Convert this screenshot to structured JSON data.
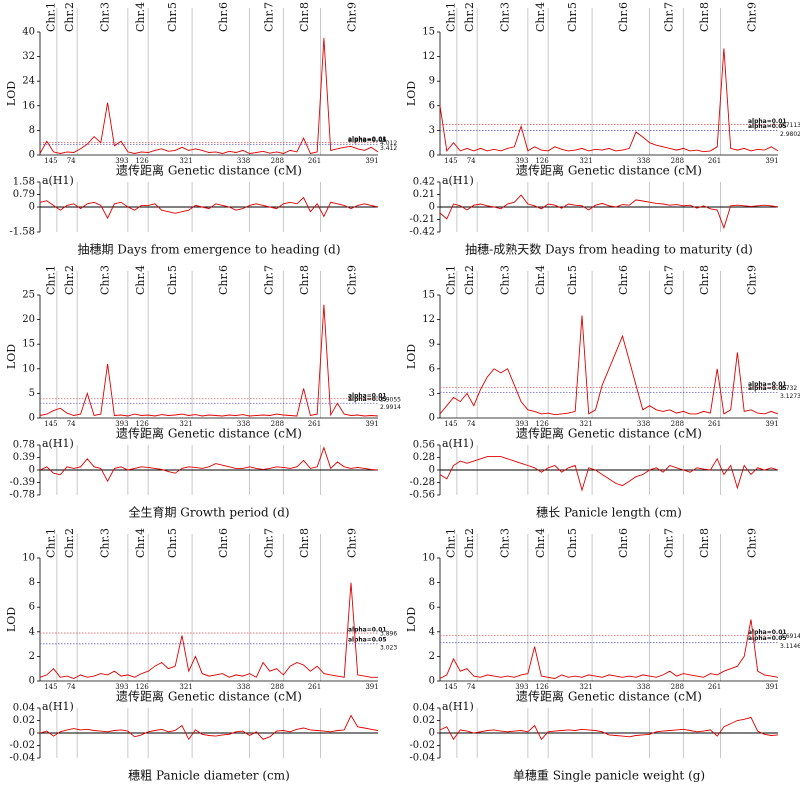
{
  "genome": {
    "x": [
      0,
      2,
      4,
      6,
      8,
      10,
      12,
      14,
      16,
      18,
      20,
      22,
      24,
      26,
      28,
      30,
      32,
      34,
      36,
      38,
      40,
      42,
      44,
      46,
      48,
      50,
      52,
      54,
      56,
      58,
      60,
      62,
      64,
      66,
      68,
      70,
      72,
      74,
      76,
      78,
      80,
      82,
      84,
      86,
      88,
      90,
      92,
      94,
      96,
      98,
      100
    ],
    "xlim": [
      0,
      100
    ],
    "chromosomes": [
      "Chr.1",
      "Chr.2",
      "Chr.3",
      "Chr.4",
      "Chr.5",
      "Chr.6",
      "Chr.7",
      "Chr.8",
      "Chr.9"
    ],
    "lengths": [
      145,
      74,
      393,
      126,
      321,
      338,
      288,
      261,
      391
    ],
    "bounds": [
      0,
      5,
      11,
      26,
      32,
      45,
      62,
      72,
      83,
      100
    ]
  },
  "chart_data": [
    {
      "type": "line",
      "title": "抽穗期 Days from emergence to heading (d)",
      "xlabel": "遗传距离 Genetic distance (cM)",
      "ylabel": "LOD",
      "color": "#e00000",
      "ylim": [
        0,
        40
      ],
      "yticks": [
        0,
        8,
        16,
        24,
        32,
        40
      ],
      "values": [
        0.5,
        4.5,
        1,
        0.5,
        1,
        0.8,
        2,
        3.5,
        6,
        4,
        17,
        3,
        4.5,
        1,
        0.5,
        1,
        0.8,
        1.5,
        2,
        1.2,
        1.5,
        2.5,
        1.5,
        2,
        1.5,
        0.8,
        1,
        0.5,
        1.2,
        0.8,
        1.5,
        0.5,
        0.8,
        1.2,
        0.6,
        1,
        0.5,
        1.5,
        1,
        5.5,
        0.5,
        1,
        38,
        1.5,
        2,
        2.5,
        2.8,
        2,
        1.5,
        2.5,
        1
      ],
      "thresholds": [
        {
          "label": "alpha=0.01",
          "value": 4.012,
          "color": "#e06060"
        },
        {
          "label": "alpha=0.05",
          "value": 3.412,
          "color": "#6060e0"
        }
      ],
      "effect": {
        "ylabel": "a(H1)",
        "ylim": [
          -1.58,
          1.58
        ],
        "yticks": [
          -1.58,
          0,
          0.79,
          1.58
        ],
        "values": [
          0.3,
          0.4,
          0.1,
          -0.2,
          0.1,
          0.2,
          -0.1,
          0.2,
          0.3,
          0.1,
          -0.7,
          0.2,
          0.3,
          0,
          -0.2,
          0.1,
          0.1,
          0.2,
          -0.2,
          -0.3,
          -0.4,
          -0.3,
          -0.2,
          0.1,
          0,
          -0.1,
          0.2,
          0.1,
          0,
          -0.2,
          -0.1,
          0.1,
          0.2,
          0.1,
          0,
          -0.1,
          0.2,
          0.3,
          0.2,
          0.6,
          -0.3,
          0.2,
          -0.6,
          0.3,
          0.2,
          0.1,
          -0.1,
          0.1,
          0.2,
          0.1,
          0
        ]
      }
    },
    {
      "type": "line",
      "title": "抽穗-成熟天数 Days from heading to maturity (d)",
      "xlabel": "遗传距离 Genetic distance (cM)",
      "ylabel": "LOD",
      "color": "#e00000",
      "ylim": [
        0,
        15
      ],
      "yticks": [
        0,
        3,
        6,
        9,
        12,
        15
      ],
      "values": [
        6,
        0.5,
        1.5,
        0.5,
        0.8,
        0.5,
        0.8,
        0.5,
        0.7,
        0.5,
        0.8,
        1,
        3.5,
        0.5,
        1,
        0.6,
        0.5,
        1,
        0.7,
        0.5,
        0.6,
        0.8,
        0.5,
        0.7,
        0.6,
        0.8,
        0.5,
        0.6,
        0.8,
        2.8,
        2.2,
        1.5,
        1.2,
        1,
        0.8,
        0.6,
        0.8,
        0.5,
        0.6,
        0.4,
        0.5,
        1,
        13,
        0.8,
        0.6,
        0.8,
        0.5,
        0.7,
        0.6,
        1,
        0.5
      ],
      "thresholds": [
        {
          "label": "alpha=0.01",
          "value": 3.7113,
          "color": "#e06060"
        },
        {
          "label": "alpha=0.05",
          "value": 2.9802,
          "color": "#6060e0"
        }
      ],
      "effect": {
        "ylabel": "a(H1)",
        "ylim": [
          -0.42,
          0.42
        ],
        "yticks": [
          -0.42,
          -0.21,
          0,
          0.21,
          0.42
        ],
        "values": [
          -0.1,
          -0.2,
          0.05,
          0.02,
          -0.05,
          0.03,
          0.05,
          0.02,
          0,
          -0.03,
          0.05,
          0.08,
          0.2,
          0.05,
          0.02,
          -0.03,
          0.05,
          0.03,
          -0.02,
          0.05,
          0.03,
          0.02,
          -0.05,
          0.03,
          0.06,
          0.02,
          0,
          0.04,
          0.03,
          0.12,
          0.1,
          0.08,
          0.06,
          0.05,
          0.03,
          0.04,
          0.02,
          0.03,
          -0.02,
          0.02,
          -0.03,
          -0.05,
          -0.35,
          0.02,
          0.03,
          0.02,
          0.01,
          0.02,
          0.03,
          0.02,
          0
        ]
      }
    },
    {
      "type": "line",
      "title": "全生育期 Growth period (d)",
      "xlabel": "遗传距离 Genetic distance (cM)",
      "ylabel": "LOD",
      "color": "#e00000",
      "ylim": [
        0,
        25
      ],
      "yticks": [
        0,
        5,
        10,
        15,
        20,
        25
      ],
      "values": [
        0.5,
        0.8,
        1.5,
        2,
        1,
        0.5,
        0.8,
        5,
        0.5,
        0.8,
        11,
        0.5,
        0.6,
        0.4,
        0.8,
        0.5,
        0.6,
        0.4,
        0.7,
        0.5,
        0.6,
        0.8,
        0.5,
        0.7,
        0.4,
        0.6,
        0.5,
        0.4,
        0.6,
        0.5,
        0.7,
        0.4,
        0.5,
        0.6,
        0.5,
        0.8,
        0.6,
        0.5,
        0.4,
        6,
        0.5,
        0.8,
        23,
        0.6,
        3,
        0.8,
        0.5,
        0.6,
        0.4,
        0.5,
        0.4
      ],
      "thresholds": [
        {
          "label": "alpha=0.01",
          "value": 3.9055,
          "color": "#e06060"
        },
        {
          "label": "alpha=0.05",
          "value": 2.9914,
          "color": "#6060e0"
        }
      ],
      "effect": {
        "ylabel": "a(H1)",
        "ylim": [
          -0.78,
          0.78
        ],
        "yticks": [
          -0.78,
          -0.39,
          0,
          0.39,
          0.78
        ],
        "values": [
          0,
          0.1,
          -0.1,
          -0.15,
          0.1,
          0.05,
          0.1,
          0.35,
          0.1,
          0.05,
          -0.35,
          0.05,
          0.1,
          0,
          0.05,
          0.1,
          0.08,
          0.05,
          0.02,
          -0.05,
          -0.1,
          0.05,
          0.1,
          0.08,
          0.05,
          0.1,
          0.2,
          0.15,
          0.1,
          0.05,
          0.05,
          0.1,
          0.05,
          0.02,
          0.05,
          0.1,
          0.08,
          0.05,
          0.1,
          0.3,
          0.05,
          0.1,
          0.7,
          0.05,
          0.25,
          0.1,
          0.05,
          0.08,
          0.05,
          0.02,
          0
        ]
      }
    },
    {
      "type": "line",
      "title": "穗长 Panicle length (cm)",
      "xlabel": "遗传距离 Genetic distance (cM)",
      "ylabel": "LOD",
      "color": "#e00000",
      "ylim": [
        0,
        15
      ],
      "yticks": [
        0,
        3,
        6,
        9,
        12,
        15
      ],
      "values": [
        0.5,
        1.5,
        2.5,
        2,
        3,
        1.5,
        3.5,
        5,
        6,
        5.5,
        6,
        4,
        2,
        1,
        0.8,
        0.5,
        0.6,
        0.4,
        0.5,
        0.6,
        0.8,
        12.5,
        0.5,
        1,
        4,
        6,
        8,
        10,
        7,
        4,
        1,
        1.5,
        1,
        0.8,
        1,
        0.6,
        0.8,
        0.5,
        0.5,
        0.8,
        0.6,
        6,
        0.5,
        1,
        8,
        0.8,
        1,
        0.6,
        0.5,
        0.8,
        0.5
      ],
      "thresholds": [
        {
          "label": "alpha=0.01",
          "value": 3.732,
          "color": "#e06060"
        },
        {
          "label": "alpha=0.05",
          "value": 3.1273,
          "color": "#6060e0"
        }
      ],
      "effect": {
        "ylabel": "a(H1)",
        "ylim": [
          -0.56,
          0.56
        ],
        "yticks": [
          -0.56,
          -0.28,
          0,
          0.28,
          0.56
        ],
        "values": [
          -0.1,
          -0.2,
          0.1,
          0.2,
          0.15,
          0.2,
          0.25,
          0.3,
          0.3,
          0.3,
          0.25,
          0.2,
          0.15,
          0.1,
          0.05,
          -0.05,
          0.05,
          0.1,
          -0.05,
          0.05,
          0.1,
          -0.45,
          0.05,
          0,
          -0.1,
          -0.2,
          -0.3,
          -0.35,
          -0.25,
          -0.15,
          -0.1,
          0,
          0.05,
          -0.05,
          0.1,
          0.05,
          0,
          -0.05,
          0.05,
          0.02,
          0,
          0.25,
          -0.1,
          0.1,
          -0.4,
          0.1,
          -0.1,
          0.05,
          0,
          0.05,
          0
        ]
      }
    },
    {
      "type": "line",
      "title": "穗粗 Panicle diameter (cm)",
      "xlabel": "遗传距离 Genetic distance (cM)",
      "ylabel": "LOD",
      "color": "#e00000",
      "ylim": [
        0,
        10
      ],
      "yticks": [
        0,
        2,
        4,
        6,
        8,
        10
      ],
      "values": [
        0.3,
        0.5,
        1,
        0.3,
        0.4,
        0.2,
        0.5,
        0.3,
        0.4,
        0.6,
        0.5,
        0.8,
        0.4,
        0.5,
        0.3,
        0.6,
        0.8,
        1.2,
        1.5,
        1,
        1.2,
        3.7,
        0.8,
        2,
        0.6,
        0.4,
        0.5,
        0.6,
        0.3,
        0.5,
        0.4,
        0.6,
        0.3,
        1.5,
        0.8,
        1,
        0.5,
        1.2,
        1.5,
        1.3,
        0.8,
        1.2,
        0.6,
        0.5,
        0.4,
        0.3,
        8,
        0.5,
        0.4,
        0.3,
        0.3
      ],
      "thresholds": [
        {
          "label": "alpha=0.01",
          "value": 3.896,
          "color": "#e06060"
        },
        {
          "label": "alpha=0.05",
          "value": 3.023,
          "color": "#6060e0"
        }
      ],
      "effect": {
        "ylabel": "a(H1)",
        "ylim": [
          -0.04,
          0.04
        ],
        "yticks": [
          -0.04,
          -0.02,
          0,
          0.02,
          0.04
        ],
        "values": [
          0,
          0.003,
          -0.005,
          0.002,
          0.005,
          0.007,
          0.005,
          0.006,
          0.004,
          0.003,
          0.002,
          0.004,
          0.005,
          0.003,
          -0.006,
          -0.003,
          0.002,
          0.004,
          0.006,
          0.002,
          0.004,
          0.012,
          -0.01,
          0.005,
          -0.002,
          -0.004,
          -0.005,
          -0.003,
          -0.002,
          0.002,
          0.003,
          -0.004,
          0.002,
          -0.01,
          -0.006,
          0.003,
          0.004,
          0.002,
          0.006,
          0.008,
          0.005,
          0.004,
          0.003,
          0.002,
          0.004,
          0.005,
          0.028,
          0.01,
          0.008,
          0.006,
          0.004
        ]
      }
    },
    {
      "type": "line",
      "title": "单穗重 Single panicle weight (g)",
      "xlabel": "遗传距离 Genetic distance (cM)",
      "ylabel": "LOD",
      "color": "#e00000",
      "ylim": [
        0,
        10
      ],
      "yticks": [
        0,
        2,
        4,
        6,
        8,
        10
      ],
      "values": [
        0.2,
        0.5,
        1.8,
        0.8,
        1,
        0.4,
        0.3,
        0.5,
        0.4,
        0.3,
        0.4,
        0.3,
        0.5,
        0.6,
        2.8,
        0.4,
        0.3,
        0.2,
        0.5,
        0.3,
        0.4,
        0.3,
        0.5,
        0.4,
        0.3,
        0.5,
        0.4,
        0.3,
        0.4,
        0.3,
        0.5,
        0.4,
        0.3,
        0.5,
        0.8,
        0.4,
        0.6,
        0.5,
        0.4,
        0.3,
        0.6,
        0.5,
        0.8,
        1,
        1.2,
        2,
        5,
        0.8,
        0.5,
        0.4,
        0.3
      ],
      "thresholds": [
        {
          "label": "alpha=0.01",
          "value": 3.6914,
          "color": "#e06060"
        },
        {
          "label": "alpha=0.05",
          "value": 3.1146,
          "color": "#6060e0"
        }
      ],
      "effect": {
        "ylabel": "a(H1)",
        "ylim": [
          -0.04,
          0.04
        ],
        "yticks": [
          -0.04,
          -0.02,
          0,
          0.02,
          0.04
        ],
        "values": [
          0.005,
          0.01,
          -0.01,
          0.005,
          0.003,
          0,
          0.002,
          0.004,
          0.005,
          0.003,
          0.002,
          0.003,
          0.004,
          0.002,
          0.012,
          -0.01,
          0.002,
          0.003,
          0.004,
          0.005,
          0.004,
          0.006,
          0.005,
          0.004,
          0.002,
          -0.003,
          -0.004,
          -0.005,
          -0.006,
          -0.004,
          -0.003,
          -0.002,
          0.002,
          0.003,
          0.004,
          0.005,
          0.006,
          0.004,
          0.002,
          0.003,
          0.005,
          -0.005,
          0.01,
          0.015,
          0.02,
          0.022,
          0.025,
          0.003,
          -0.002,
          -0.004,
          -0.003
        ]
      }
    }
  ]
}
